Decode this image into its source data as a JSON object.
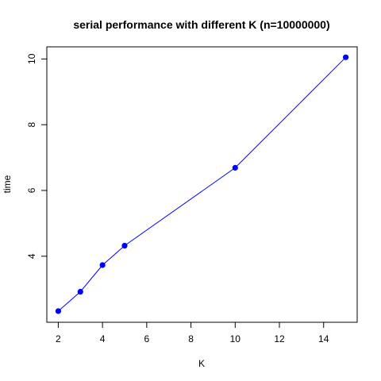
{
  "chart_data": {
    "type": "line",
    "title": "serial performance with different K (n=10000000)",
    "xlabel": "K",
    "ylabel": "time",
    "xlim": [
      2,
      15
    ],
    "ylim": [
      2.3,
      10.05
    ],
    "xticks": [
      2,
      4,
      6,
      8,
      10,
      12,
      14
    ],
    "yticks": [
      4,
      6,
      8,
      10
    ],
    "grid": false,
    "legend": "none",
    "series": [
      {
        "x": [
          2,
          3,
          4,
          5,
          10,
          15
        ],
        "y": [
          2.33,
          2.92,
          3.73,
          4.32,
          6.69,
          10.05
        ],
        "color": "#0000FF"
      }
    ]
  }
}
